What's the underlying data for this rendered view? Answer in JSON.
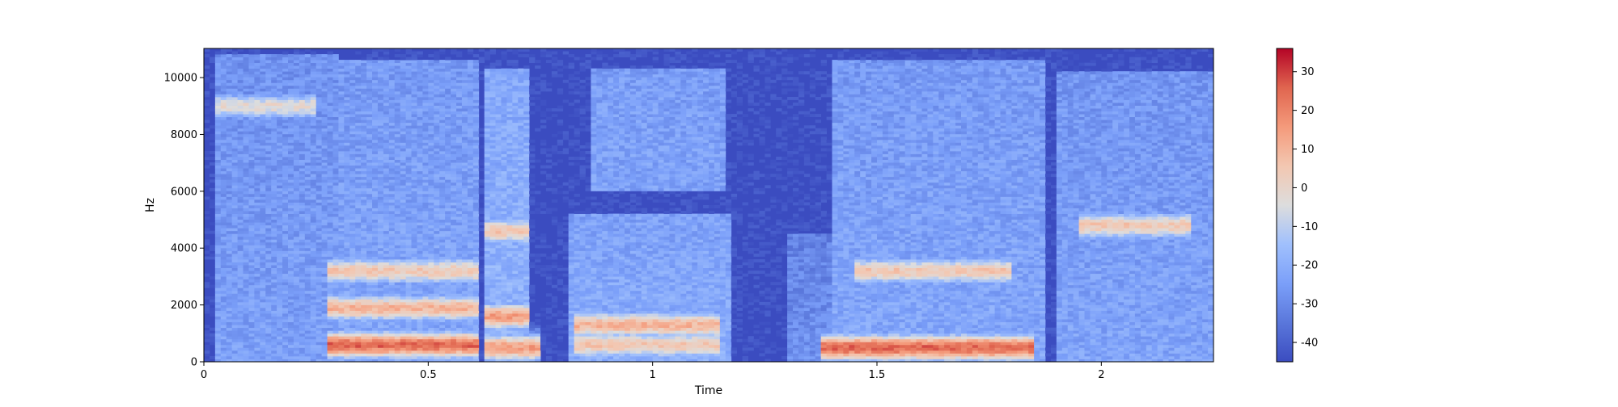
{
  "chart_data": {
    "type": "heatmap",
    "title": "",
    "xlabel": "Time",
    "ylabel": "Hz",
    "xlim": [
      0,
      2.25
    ],
    "ylim": [
      0,
      11025
    ],
    "xticks": [
      {
        "value": 0,
        "label": "0"
      },
      {
        "value": 0.5,
        "label": "0.5"
      },
      {
        "value": 1,
        "label": "1"
      },
      {
        "value": 1.5,
        "label": "1.5"
      },
      {
        "value": 2,
        "label": "2"
      }
    ],
    "yticks": [
      {
        "value": 0,
        "label": "0"
      },
      {
        "value": 2000,
        "label": "2000"
      },
      {
        "value": 4000,
        "label": "4000"
      },
      {
        "value": 6000,
        "label": "6000"
      },
      {
        "value": 8000,
        "label": "8000"
      },
      {
        "value": 10000,
        "label": "10000"
      }
    ],
    "colorbar": {
      "cmap": "coolwarm",
      "range": [
        -45,
        36
      ],
      "ticks": [
        {
          "value": 30,
          "label": "30"
        },
        {
          "value": 20,
          "label": "20"
        },
        {
          "value": 10,
          "label": "10"
        },
        {
          "value": 0,
          "label": "0"
        },
        {
          "value": -10,
          "label": "-10"
        },
        {
          "value": -20,
          "label": "-20"
        },
        {
          "value": -30,
          "label": "-30"
        },
        {
          "value": -40,
          "label": "-40"
        }
      ]
    },
    "grid": false,
    "noise_floor_db": -45,
    "segments": [
      {
        "t": [
          0.03,
          0.3
        ],
        "f_max": 10800,
        "level_db": -24
      },
      {
        "t": [
          0.3,
          0.61
        ],
        "f_max": 10600,
        "level_db": -22
      },
      {
        "t": [
          0.62,
          0.73
        ],
        "f_max": 10300,
        "level_db": -18
      },
      {
        "t": [
          0.81,
          1.18
        ],
        "f_max": 5200,
        "level_db": -20
      },
      {
        "t": [
          0.86,
          1.16
        ],
        "f_max": 10300,
        "f_min": 6000,
        "level_db": -21
      },
      {
        "t": [
          1.3,
          1.42
        ],
        "f_max": 4500,
        "level_db": -28
      },
      {
        "t": [
          1.4,
          1.88
        ],
        "f_max": 10600,
        "level_db": -22
      },
      {
        "t": [
          1.9,
          2.25
        ],
        "f_max": 10200,
        "level_db": -23
      }
    ],
    "formant_bands": [
      {
        "t": [
          0.03,
          0.25
        ],
        "f": 9000,
        "level_db": -2
      },
      {
        "t": [
          0.28,
          0.61
        ],
        "f": 3200,
        "level_db": 5
      },
      {
        "t": [
          0.28,
          0.61
        ],
        "f": 1900,
        "level_db": 10
      },
      {
        "t": [
          0.28,
          0.61
        ],
        "f": 600,
        "level_db": 25
      },
      {
        "t": [
          0.63,
          0.73
        ],
        "f": 4600,
        "level_db": 5
      },
      {
        "t": [
          0.63,
          0.73
        ],
        "f": 1600,
        "level_db": 15
      },
      {
        "t": [
          0.63,
          0.75
        ],
        "f": 500,
        "level_db": 15
      },
      {
        "t": [
          0.82,
          1.15
        ],
        "f": 1300,
        "level_db": 10
      },
      {
        "t": [
          0.82,
          1.15
        ],
        "f": 600,
        "level_db": 5
      },
      {
        "t": [
          1.37,
          1.85
        ],
        "f": 500,
        "level_db": 25
      },
      {
        "t": [
          1.45,
          1.8
        ],
        "f": 3200,
        "level_db": 5
      },
      {
        "t": [
          1.95,
          2.2
        ],
        "f": 4800,
        "level_db": 5
      }
    ]
  }
}
